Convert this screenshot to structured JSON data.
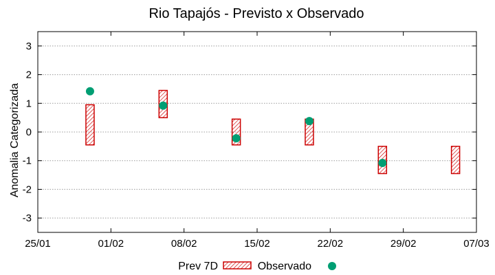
{
  "chart_data": {
    "type": "range-bar-scatter",
    "title": "Rio Tapajós - Previsto x Observado",
    "xlabel": "",
    "ylabel": "Anomalia Categorizada",
    "ylim": [
      -3.5,
      3.5
    ],
    "yticks": [
      -3,
      -2,
      -1,
      0,
      1,
      2,
      3
    ],
    "ytick_labels": [
      "-3",
      "-2",
      "-1",
      "0",
      "1",
      "2",
      "3"
    ],
    "x_start_day": 0,
    "x_end_day": 42,
    "xticks": [
      0,
      7,
      14,
      21,
      28,
      35,
      42
    ],
    "xtick_labels": [
      "25/01",
      "01/02",
      "08/02",
      "15/02",
      "22/02",
      "29/02",
      "07/03"
    ],
    "grid": true,
    "legend_position": "bottom-center",
    "series": [
      {
        "name": "Prev 7D",
        "kind": "range",
        "color": "#cc0000",
        "points": [
          {
            "x_day": 5.0,
            "low": -0.45,
            "high": 0.95
          },
          {
            "x_day": 12.0,
            "low": 0.5,
            "high": 1.45
          },
          {
            "x_day": 19.0,
            "low": -0.45,
            "high": 0.45
          },
          {
            "x_day": 26.0,
            "low": -0.45,
            "high": 0.45
          },
          {
            "x_day": 33.0,
            "low": -1.45,
            "high": -0.5
          },
          {
            "x_day": 40.0,
            "low": -1.45,
            "high": -0.5
          }
        ]
      },
      {
        "name": "Observado",
        "kind": "scatter",
        "color": "#009e73",
        "points": [
          {
            "x_day": 5.0,
            "y": 1.42
          },
          {
            "x_day": 12.0,
            "y": 0.92
          },
          {
            "x_day": 19.0,
            "y": -0.22
          },
          {
            "x_day": 26.0,
            "y": 0.38
          },
          {
            "x_day": 33.0,
            "y": -1.08
          }
        ]
      }
    ]
  }
}
